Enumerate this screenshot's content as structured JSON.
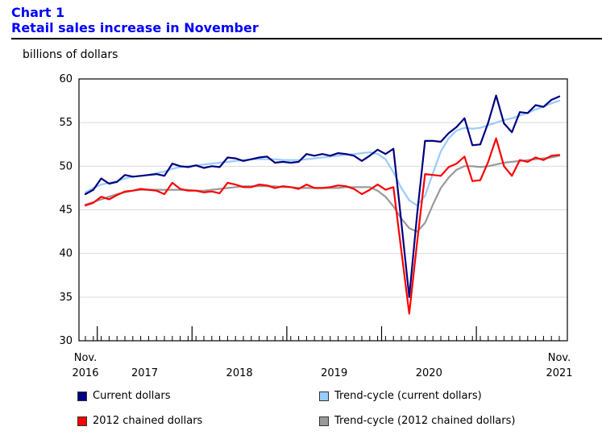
{
  "header": {
    "chart_label": "Chart 1",
    "title": "Retail sales increase in November",
    "y_unit": "billions of dollars"
  },
  "colors": {
    "current": "#000080",
    "trend_current": "#99ccff",
    "chained": "#ff0000",
    "trend_chained": "#999999"
  },
  "legend": {
    "current": "Current dollars",
    "trend_current": "Trend-cycle (current dollars)",
    "chained": "2012 chained dollars",
    "trend_chained": "Trend-cycle (2012 chained dollars)"
  },
  "chart_data": {
    "type": "line",
    "title": "Retail sales increase in November",
    "ylabel": "billions of dollars",
    "xlabel": "",
    "ylim": [
      30,
      60
    ],
    "yticks": [
      30,
      35,
      40,
      45,
      50,
      55,
      60
    ],
    "grid": "horizontal",
    "x_start_label": [
      "Nov.",
      "2016"
    ],
    "x_end_label": [
      "Nov.",
      "2021"
    ],
    "year_labels": [
      "2017",
      "2018",
      "2019",
      "2020"
    ],
    "months": 61,
    "year_boundaries": [
      2,
      14,
      26,
      38,
      50
    ],
    "series": [
      {
        "name": "Current dollars",
        "key": "current",
        "values": [
          46.8,
          47.3,
          48.6,
          48.0,
          48.2,
          49.0,
          48.8,
          48.9,
          49.0,
          49.1,
          48.9,
          50.3,
          50.0,
          49.9,
          50.1,
          49.8,
          50.0,
          49.9,
          51.0,
          50.9,
          50.6,
          50.8,
          51.0,
          51.1,
          50.4,
          50.5,
          50.4,
          50.5,
          51.4,
          51.2,
          51.4,
          51.2,
          51.5,
          51.4,
          51.2,
          50.6,
          51.2,
          51.9,
          51.4,
          52.0,
          43.6,
          35.0,
          44.5,
          52.9,
          52.9,
          52.8,
          53.8,
          54.5,
          55.5,
          52.4,
          52.5,
          55.0,
          58.1,
          54.9,
          53.9,
          56.2,
          56.1,
          57.0,
          56.8,
          57.6,
          58.0
        ]
      },
      {
        "name": "Trend-cycle (current dollars)",
        "key": "trend_current",
        "values": [
          47.0,
          47.5,
          47.9,
          48.1,
          48.3,
          48.6,
          48.8,
          48.9,
          49.0,
          49.2,
          49.4,
          49.7,
          49.9,
          50.0,
          50.1,
          50.2,
          50.3,
          50.4,
          50.5,
          50.6,
          50.7,
          50.8,
          50.8,
          50.8,
          50.8,
          50.7,
          50.7,
          50.7,
          50.8,
          50.9,
          51.0,
          51.1,
          51.2,
          51.3,
          51.4,
          51.5,
          51.6,
          51.4,
          50.8,
          49.3,
          47.5,
          46.1,
          45.5,
          46.6,
          49.2,
          51.7,
          53.2,
          54.1,
          54.4,
          54.3,
          54.4,
          54.7,
          55.0,
          55.3,
          55.5,
          55.8,
          56.1,
          56.5,
          56.8,
          57.2,
          57.5
        ]
      },
      {
        "name": "2012 chained dollars",
        "key": "chained",
        "values": [
          45.5,
          45.8,
          46.5,
          46.2,
          46.7,
          47.1,
          47.2,
          47.4,
          47.3,
          47.2,
          46.8,
          48.1,
          47.4,
          47.2,
          47.2,
          47.0,
          47.1,
          46.9,
          48.1,
          47.9,
          47.6,
          47.6,
          47.9,
          47.8,
          47.5,
          47.7,
          47.6,
          47.4,
          47.9,
          47.5,
          47.5,
          47.6,
          47.8,
          47.7,
          47.4,
          46.8,
          47.3,
          47.9,
          47.3,
          47.6,
          40.3,
          33.1,
          41.3,
          49.1,
          49.0,
          48.9,
          49.9,
          50.3,
          51.1,
          48.3,
          48.4,
          50.5,
          53.2,
          50.0,
          48.9,
          50.7,
          50.5,
          51.0,
          50.7,
          51.2,
          51.3
        ]
      },
      {
        "name": "Trend-cycle (2012 chained dollars)",
        "key": "trend_chained",
        "values": [
          45.6,
          45.9,
          46.2,
          46.5,
          46.8,
          47.0,
          47.2,
          47.3,
          47.3,
          47.3,
          47.3,
          47.3,
          47.3,
          47.3,
          47.2,
          47.2,
          47.3,
          47.4,
          47.5,
          47.6,
          47.7,
          47.7,
          47.7,
          47.7,
          47.7,
          47.6,
          47.6,
          47.5,
          47.5,
          47.5,
          47.5,
          47.5,
          47.5,
          47.6,
          47.6,
          47.6,
          47.6,
          47.2,
          46.5,
          45.4,
          44.0,
          42.9,
          42.5,
          43.5,
          45.6,
          47.5,
          48.7,
          49.6,
          50.0,
          50.0,
          49.9,
          50.0,
          50.2,
          50.4,
          50.5,
          50.6,
          50.7,
          50.8,
          50.9,
          51.0,
          51.2
        ]
      }
    ]
  }
}
